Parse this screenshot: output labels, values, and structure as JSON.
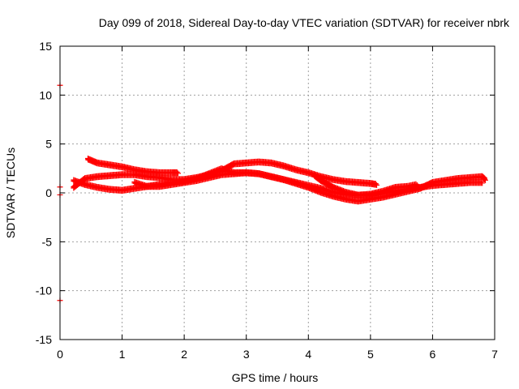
{
  "chart_data": {
    "type": "scatter",
    "title": "Day 099 of 2018, Sidereal Day-to-day VTEC variation (SDTVAR) for receiver nbrk",
    "xlabel": "GPS time / hours",
    "ylabel": "SDTVAR / TECUs",
    "xlim": [
      0,
      7
    ],
    "ylim": [
      -15,
      15
    ],
    "xticks": [
      "0",
      "1",
      "2",
      "3",
      "4",
      "5",
      "6",
      "7"
    ],
    "yticks": [
      "-15",
      "-10",
      "-5",
      "0",
      "5",
      "10",
      "15"
    ],
    "grid": true,
    "marker_color": "#ff0000",
    "grid_color": "#a0a0a0",
    "series": [
      {
        "values": [
          [
            0.22,
            1.2
          ],
          [
            0.4,
            0.8
          ],
          [
            0.6,
            0.5
          ],
          [
            0.8,
            0.3
          ],
          [
            1.0,
            0.2
          ],
          [
            1.2,
            0.4
          ],
          [
            1.4,
            0.6
          ],
          [
            1.6,
            0.8
          ],
          [
            1.8,
            1.0
          ],
          [
            2.0,
            1.1
          ],
          [
            2.2,
            1.4
          ],
          [
            2.4,
            1.9
          ],
          [
            2.6,
            2.4
          ],
          [
            2.8,
            2.0
          ],
          [
            3.0,
            2.0
          ],
          [
            3.2,
            1.9
          ],
          [
            3.4,
            1.6
          ],
          [
            3.6,
            1.3
          ],
          [
            3.8,
            1.0
          ],
          [
            4.0,
            0.7
          ],
          [
            4.2,
            0.4
          ],
          [
            4.4,
            0.0
          ],
          [
            4.6,
            -0.2
          ],
          [
            4.8,
            -0.3
          ],
          [
            5.0,
            -0.3
          ],
          [
            5.2,
            -0.1
          ],
          [
            5.4,
            0.1
          ],
          [
            5.6,
            0.3
          ],
          [
            5.8,
            0.5
          ],
          [
            6.0,
            0.7
          ],
          [
            6.2,
            0.8
          ],
          [
            6.4,
            0.9
          ],
          [
            6.6,
            1.0
          ],
          [
            6.8,
            1.0
          ]
        ]
      },
      {
        "values": [
          [
            0.45,
            3.4
          ],
          [
            0.6,
            3.0
          ],
          [
            0.8,
            2.8
          ],
          [
            1.0,
            2.6
          ],
          [
            1.2,
            2.3
          ],
          [
            1.4,
            2.1
          ],
          [
            1.6,
            2.0
          ],
          [
            1.8,
            2.0
          ],
          [
            1.9,
            2.0
          ]
        ]
      },
      {
        "values": [
          [
            0.22,
            0.5
          ],
          [
            0.4,
            1.4
          ],
          [
            0.6,
            1.6
          ],
          [
            0.8,
            1.7
          ],
          [
            1.0,
            1.8
          ],
          [
            1.2,
            1.8
          ],
          [
            1.4,
            1.6
          ],
          [
            1.6,
            1.5
          ],
          [
            1.8,
            1.3
          ],
          [
            2.0,
            1.3
          ],
          [
            2.2,
            1.5
          ],
          [
            2.4,
            1.8
          ],
          [
            2.6,
            2.2
          ],
          [
            2.8,
            2.9
          ],
          [
            3.0,
            3.0
          ],
          [
            3.2,
            3.1
          ],
          [
            3.4,
            3.0
          ],
          [
            3.6,
            2.7
          ],
          [
            3.8,
            2.3
          ],
          [
            4.0,
            2.0
          ],
          [
            4.2,
            1.6
          ],
          [
            4.4,
            1.3
          ],
          [
            4.6,
            1.1
          ],
          [
            4.8,
            1.0
          ],
          [
            5.0,
            0.9
          ],
          [
            5.1,
            0.8
          ]
        ]
      },
      {
        "values": [
          [
            1.2,
            1.0
          ],
          [
            1.4,
            0.6
          ],
          [
            1.6,
            0.6
          ],
          [
            1.8,
            0.8
          ],
          [
            2.0,
            1.0
          ],
          [
            2.2,
            1.2
          ],
          [
            2.4,
            1.5
          ],
          [
            2.6,
            1.8
          ],
          [
            2.8,
            1.9
          ],
          [
            3.0,
            2.0
          ],
          [
            3.2,
            1.9
          ],
          [
            3.4,
            1.6
          ],
          [
            3.6,
            1.3
          ],
          [
            3.8,
            0.9
          ],
          [
            4.0,
            0.5
          ],
          [
            4.2,
            0.0
          ],
          [
            4.4,
            -0.4
          ],
          [
            4.6,
            -0.7
          ],
          [
            4.8,
            -0.9
          ],
          [
            5.0,
            -0.7
          ],
          [
            5.2,
            -0.5
          ],
          [
            5.4,
            -0.2
          ],
          [
            5.6,
            0.1
          ],
          [
            5.8,
            0.4
          ],
          [
            6.0,
            1.0
          ],
          [
            6.2,
            1.2
          ],
          [
            6.4,
            1.4
          ],
          [
            6.6,
            1.5
          ],
          [
            6.8,
            1.6
          ],
          [
            6.85,
            1.3
          ]
        ]
      },
      {
        "values": [
          [
            4.1,
            1.7
          ],
          [
            4.2,
            1.2
          ],
          [
            4.4,
            0.5
          ],
          [
            4.6,
            0.0
          ],
          [
            4.8,
            -0.3
          ],
          [
            5.0,
            -0.2
          ],
          [
            5.2,
            0.1
          ],
          [
            5.4,
            0.5
          ],
          [
            5.6,
            0.6
          ],
          [
            5.75,
            0.8
          ]
        ]
      },
      {
        "values": [
          [
            0.0,
            11.0
          ],
          [
            0.0,
            -11.0
          ],
          [
            0.0,
            0.6
          ],
          [
            0.0,
            -0.2
          ]
        ]
      }
    ]
  }
}
